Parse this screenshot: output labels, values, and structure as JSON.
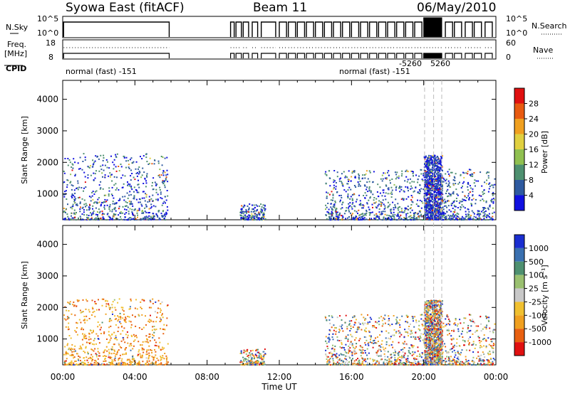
{
  "header": {
    "station": "Syowa East (fitACF)",
    "beam": "Beam 11",
    "date": "06/May/2010"
  },
  "noise_panel": {
    "left_label": "N.Sky",
    "right_label": "N.Search",
    "left_ticks": [
      "10^5",
      "10^0"
    ],
    "right_ticks": [
      "10^5",
      "10^0"
    ]
  },
  "freq_panel": {
    "left_label_1": "Freq.",
    "left_label_2": "[MHz]",
    "right_label": "Nave",
    "left_ticks": [
      "18",
      "8"
    ],
    "right_ticks": [
      "60",
      "0"
    ]
  },
  "cpid": {
    "label": "CPID",
    "modes": [
      {
        "text": "normal (fast) -151"
      },
      {
        "text": "normal (fast) -151"
      },
      {
        "text": "-5260"
      },
      {
        "text": "5260"
      }
    ]
  },
  "power_colorbar": {
    "label": "Power [dB]",
    "ticks": [
      "28",
      "24",
      "20",
      "16",
      "12",
      "8",
      "4"
    ],
    "colors": [
      "#e01010",
      "#e85a10",
      "#f0a020",
      "#e0d040",
      "#90c050",
      "#4e9070",
      "#2e5aa0",
      "#1010e0"
    ]
  },
  "velocity_colorbar": {
    "label": "Velocity [m s⁻¹]",
    "ticks": [
      "1000",
      "500",
      "100",
      "25",
      "-25",
      "-100",
      "-500",
      "-1000"
    ],
    "colors": [
      "#1a2ed0",
      "#3a70b0",
      "#4e9070",
      "#9ac070",
      "#c8c8c8",
      "#f0c030",
      "#f0a020",
      "#e86010",
      "#e01010"
    ]
  },
  "chart_data": [
    {
      "type": "heatmap",
      "title": "",
      "xlabel": "",
      "ylabel": "Slant Range [km]",
      "x_ticks": [
        "00:00",
        "04:00",
        "08:00",
        "12:00",
        "16:00",
        "20:00",
        "00:00"
      ],
      "y_ticks": [
        "1000",
        "2000",
        "3000",
        "4000"
      ],
      "xlim": [
        0,
        24
      ],
      "ylim": [
        180,
        4600
      ],
      "quantity": "Power [dB]",
      "echo_regions": [
        {
          "t_start": 0.0,
          "t_end": 5.8,
          "range_min": 200,
          "range_max": 2300,
          "typical": "low-mid power"
        },
        {
          "t_start": 9.8,
          "t_end": 11.2,
          "range_min": 200,
          "range_max": 700,
          "typical": "mid power"
        },
        {
          "t_start": 14.5,
          "t_end": 23.9,
          "range_min": 200,
          "range_max": 1800,
          "typical": "mixed"
        },
        {
          "t_start": 20.0,
          "t_end": 21.0,
          "range_min": 200,
          "range_max": 2250,
          "typical": "low power, dense"
        }
      ]
    },
    {
      "type": "heatmap",
      "title": "",
      "xlabel": "Time UT",
      "ylabel": "Slant Range [km]",
      "x_ticks": [
        "00:00",
        "04:00",
        "08:00",
        "12:00",
        "16:00",
        "20:00",
        "00:00"
      ],
      "y_ticks": [
        "1000",
        "2000",
        "3000",
        "4000"
      ],
      "xlim": [
        0,
        24
      ],
      "ylim": [
        180,
        4600
      ],
      "quantity": "Velocity [m s⁻¹]",
      "echo_regions": [
        {
          "t_start": 0.0,
          "t_end": 5.8,
          "range_min": 200,
          "range_max": 2300,
          "typical": "negative (away) velocities"
        },
        {
          "t_start": 9.8,
          "t_end": 11.2,
          "range_min": 200,
          "range_max": 700,
          "typical": "mixed"
        },
        {
          "t_start": 14.5,
          "t_end": 23.9,
          "range_min": 200,
          "range_max": 1800,
          "typical": "mixed"
        },
        {
          "t_start": 20.0,
          "t_end": 21.0,
          "range_min": 200,
          "range_max": 2250,
          "typical": "near zero, dense"
        }
      ]
    }
  ]
}
